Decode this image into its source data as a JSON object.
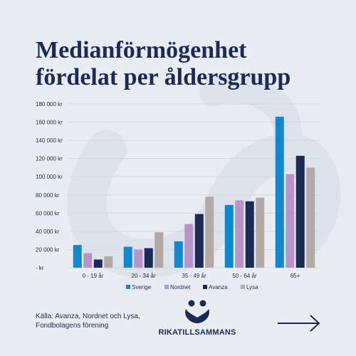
{
  "page": {
    "title_line1": "Medianförmögenhet",
    "title_line2": "fördelat per åldersgrupp",
    "source": "Källa: Avanza, Nordnet och Lysa, Fondbolagens förening",
    "logo_text": "RIKATILLSAMMANS",
    "icons": {
      "logo": "people-heart-logo-icon",
      "arrow": "arrow-right-icon"
    },
    "colors": {
      "background": "#e9edf2",
      "title": "#1b2b55"
    }
  },
  "chart_data": {
    "type": "bar",
    "title": "Medianförmögenhet fördelat per åldersgrupp",
    "categories": [
      "0 - 19 år",
      "20 - 34 år",
      "35 - 49 år",
      "50 - 64 år",
      "65+"
    ],
    "series": [
      {
        "name": "Sverige",
        "color": "#0f88cf",
        "values": [
          25000,
          23000,
          29000,
          69000,
          166000
        ]
      },
      {
        "name": "Nordnet",
        "color": "#b894c8",
        "values": [
          16000,
          20000,
          48000,
          74000,
          103000
        ]
      },
      {
        "name": "Avanza",
        "color": "#1b2b55",
        "values": [
          9000,
          21500,
          59000,
          73000,
          123000
        ]
      },
      {
        "name": "Lysa",
        "color": "#b3aaa6",
        "values": [
          12500,
          39000,
          78000,
          77000,
          110000
        ]
      }
    ],
    "ylim": [
      0,
      180000
    ],
    "yticks": [
      {
        "value": 0,
        "label": "-   kr"
      },
      {
        "value": 20000,
        "label": "20 000 kr"
      },
      {
        "value": 40000,
        "label": "40 000 kr"
      },
      {
        "value": 60000,
        "label": "60 000 kr"
      },
      {
        "value": 80000,
        "label": "80 000 kr"
      },
      {
        "value": 100000,
        "label": "100 000 kr"
      },
      {
        "value": 120000,
        "label": "120 000 kr"
      },
      {
        "value": 140000,
        "label": "140 000 kr"
      },
      {
        "value": 160000,
        "label": "160 000 kr"
      },
      {
        "value": 180000,
        "label": "180 000 kr"
      }
    ],
    "grid": true,
    "legend": "bottom"
  }
}
